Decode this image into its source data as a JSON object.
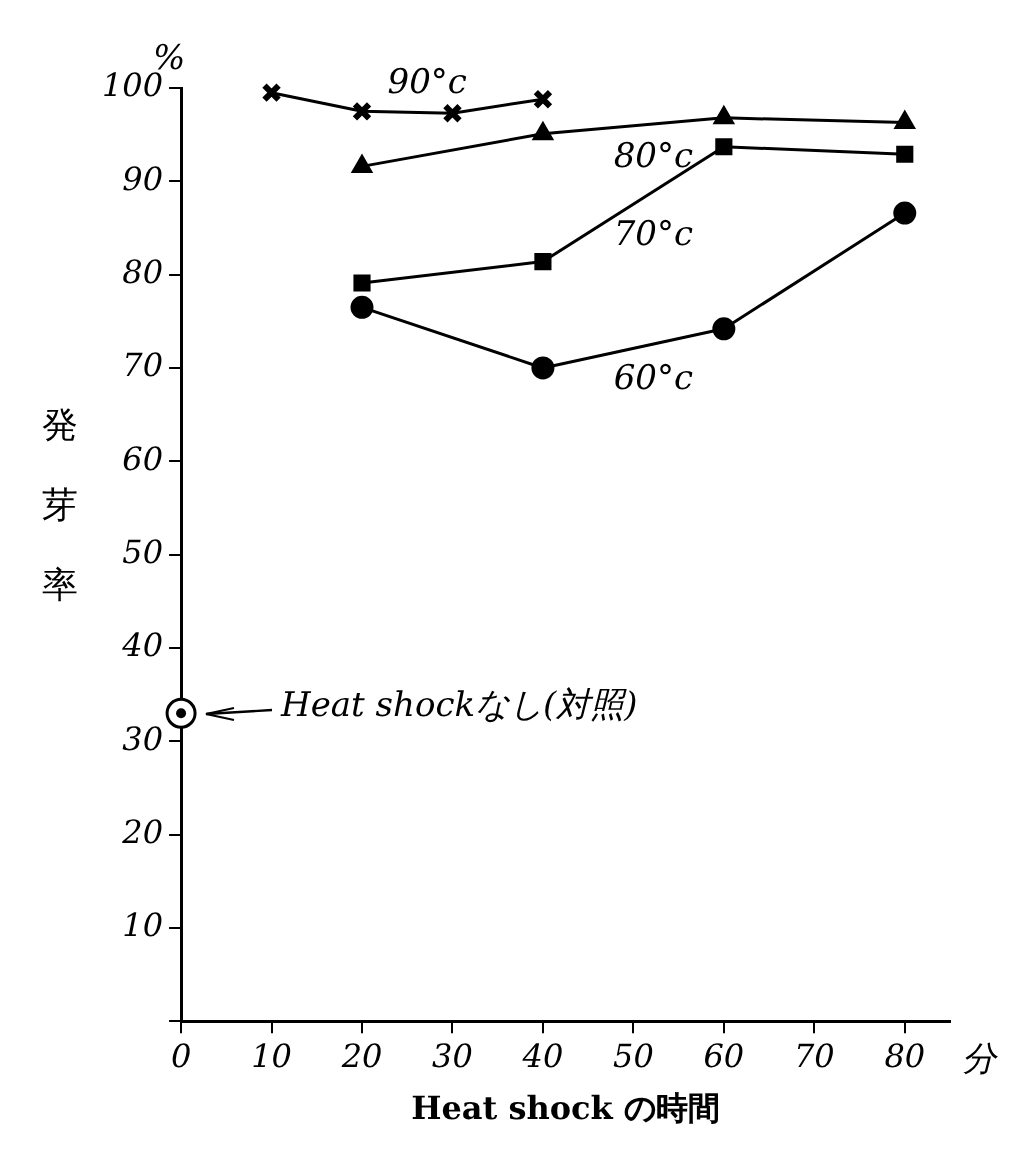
{
  "chart_data": {
    "type": "line",
    "xlabel": "Heat shock の時間",
    "ylabel": "発芽率",
    "xlim": [
      0,
      85
    ],
    "xticks": [
      0,
      10,
      20,
      30,
      40,
      50,
      60,
      70,
      80
    ],
    "ylim": [
      0,
      100
    ],
    "yticks": [
      {
        "value": 0,
        "label": null
      },
      10,
      20,
      30,
      40,
      50,
      60,
      70,
      80,
      90,
      100
    ],
    "grid": false,
    "legend": false,
    "series": [
      {
        "name": "90°c",
        "color": "#000000",
        "marker": "cross",
        "x": [
          10,
          20,
          30,
          40
        ],
        "values": [
          99.5,
          97.5,
          97.3,
          98.8
        ]
      },
      {
        "name": "80°c",
        "color": "#000000",
        "marker": "triangle",
        "x": [
          20,
          40,
          60,
          80
        ],
        "values": [
          91.6,
          95.1,
          96.8,
          96.3
        ]
      },
      {
        "name": "70°c",
        "color": "#000000",
        "marker": "square",
        "x": [
          20,
          40,
          60,
          80
        ],
        "values": [
          79.1,
          81.4,
          93.7,
          92.9
        ]
      },
      {
        "name": "60°c",
        "color": "#000000",
        "marker": "circle",
        "x": [
          20,
          40,
          60,
          80
        ],
        "values": [
          76.5,
          70,
          74.2,
          86.6
        ]
      },
      {
        "type": "scatter",
        "color": "#000000",
        "marker": "circle",
        "x": [
          0
        ],
        "values": [
          33
        ]
      }
    ],
    "annotations": [
      "%",
      "分",
      {
        "text": "Heat shockなし(対照)",
        "x": 0,
        "y": 33
      }
    ]
  }
}
